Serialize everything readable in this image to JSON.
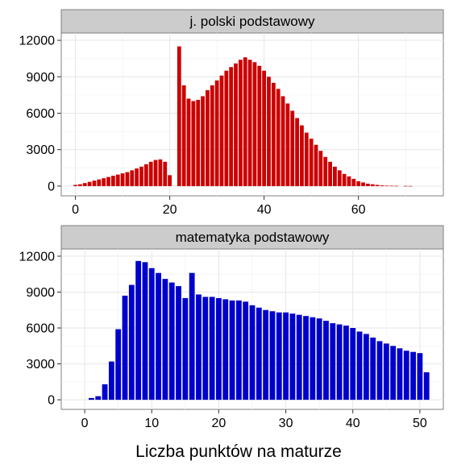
{
  "chart_data": [
    {
      "type": "bar",
      "title": "j. polski podstawowy",
      "xlabel": "",
      "ylabel": "",
      "color": "#cc0000",
      "xlim": [
        -3,
        78
      ],
      "ylim": [
        -800,
        12600
      ],
      "xticks": [
        0,
        20,
        40,
        60
      ],
      "yticks": [
        0,
        3000,
        6000,
        9000,
        12000
      ],
      "x": [
        0,
        1,
        2,
        3,
        4,
        5,
        6,
        7,
        8,
        9,
        10,
        11,
        12,
        13,
        14,
        15,
        16,
        17,
        18,
        19,
        20,
        21,
        22,
        23,
        24,
        25,
        26,
        27,
        28,
        29,
        30,
        31,
        32,
        33,
        34,
        35,
        36,
        37,
        38,
        39,
        40,
        41,
        42,
        43,
        44,
        45,
        46,
        47,
        48,
        49,
        50,
        51,
        52,
        53,
        54,
        55,
        56,
        57,
        58,
        59,
        60,
        61,
        62,
        63,
        64,
        65,
        66,
        67,
        68,
        69,
        70,
        71,
        72,
        73,
        74,
        75
      ],
      "values": [
        100,
        150,
        250,
        350,
        450,
        550,
        650,
        750,
        850,
        950,
        1050,
        1150,
        1300,
        1450,
        1600,
        1800,
        2000,
        2150,
        2200,
        2000,
        900,
        0,
        11500,
        8300,
        7200,
        7000,
        7100,
        7400,
        7900,
        8300,
        8700,
        9100,
        9500,
        9800,
        10100,
        10400,
        10600,
        10400,
        10200,
        9900,
        9500,
        9000,
        8500,
        8000,
        7400,
        6800,
        6200,
        5600,
        5000,
        4400,
        3900,
        3400,
        2900,
        2400,
        2000,
        1600,
        1300,
        1000,
        800,
        600,
        400,
        300,
        200,
        150,
        100,
        60,
        40,
        30,
        20,
        0,
        15,
        10,
        0,
        0,
        0,
        0
      ]
    },
    {
      "type": "bar",
      "title": "matematyka podstawowy",
      "xlabel": "Liczba punktów na maturze",
      "ylabel": "",
      "color": "#0000cc",
      "xlim": [
        -3.5,
        53.5
      ],
      "ylim": [
        -800,
        12600
      ],
      "xticks": [
        0,
        10,
        20,
        30,
        40,
        50
      ],
      "yticks": [
        0,
        3000,
        6000,
        9000,
        12000
      ],
      "x": [
        0,
        1,
        2,
        3,
        4,
        5,
        6,
        7,
        8,
        9,
        10,
        11,
        12,
        13,
        14,
        15,
        16,
        17,
        18,
        19,
        20,
        21,
        22,
        23,
        24,
        25,
        26,
        27,
        28,
        29,
        30,
        31,
        32,
        33,
        34,
        35,
        36,
        37,
        38,
        39,
        40,
        41,
        42,
        43,
        44,
        45,
        46,
        47,
        48,
        49,
        50,
        51
      ],
      "values": [
        0,
        150,
        300,
        1300,
        3200,
        5900,
        8700,
        9600,
        11600,
        11500,
        11000,
        10600,
        10100,
        9800,
        9500,
        8500,
        10600,
        8800,
        8600,
        8600,
        8500,
        8400,
        8300,
        8300,
        8200,
        7900,
        7700,
        7500,
        7400,
        7300,
        7300,
        7200,
        7100,
        7000,
        6900,
        6800,
        6600,
        6400,
        6300,
        6200,
        6000,
        5700,
        5500,
        5200,
        4900,
        4700,
        4500,
        4300,
        4100,
        4000,
        3900,
        2300
      ]
    }
  ],
  "strip_titles": [
    "j. polski podstawowy",
    "matematyka podstawowy"
  ],
  "x_axis_title": "Liczba punktów na maturze"
}
